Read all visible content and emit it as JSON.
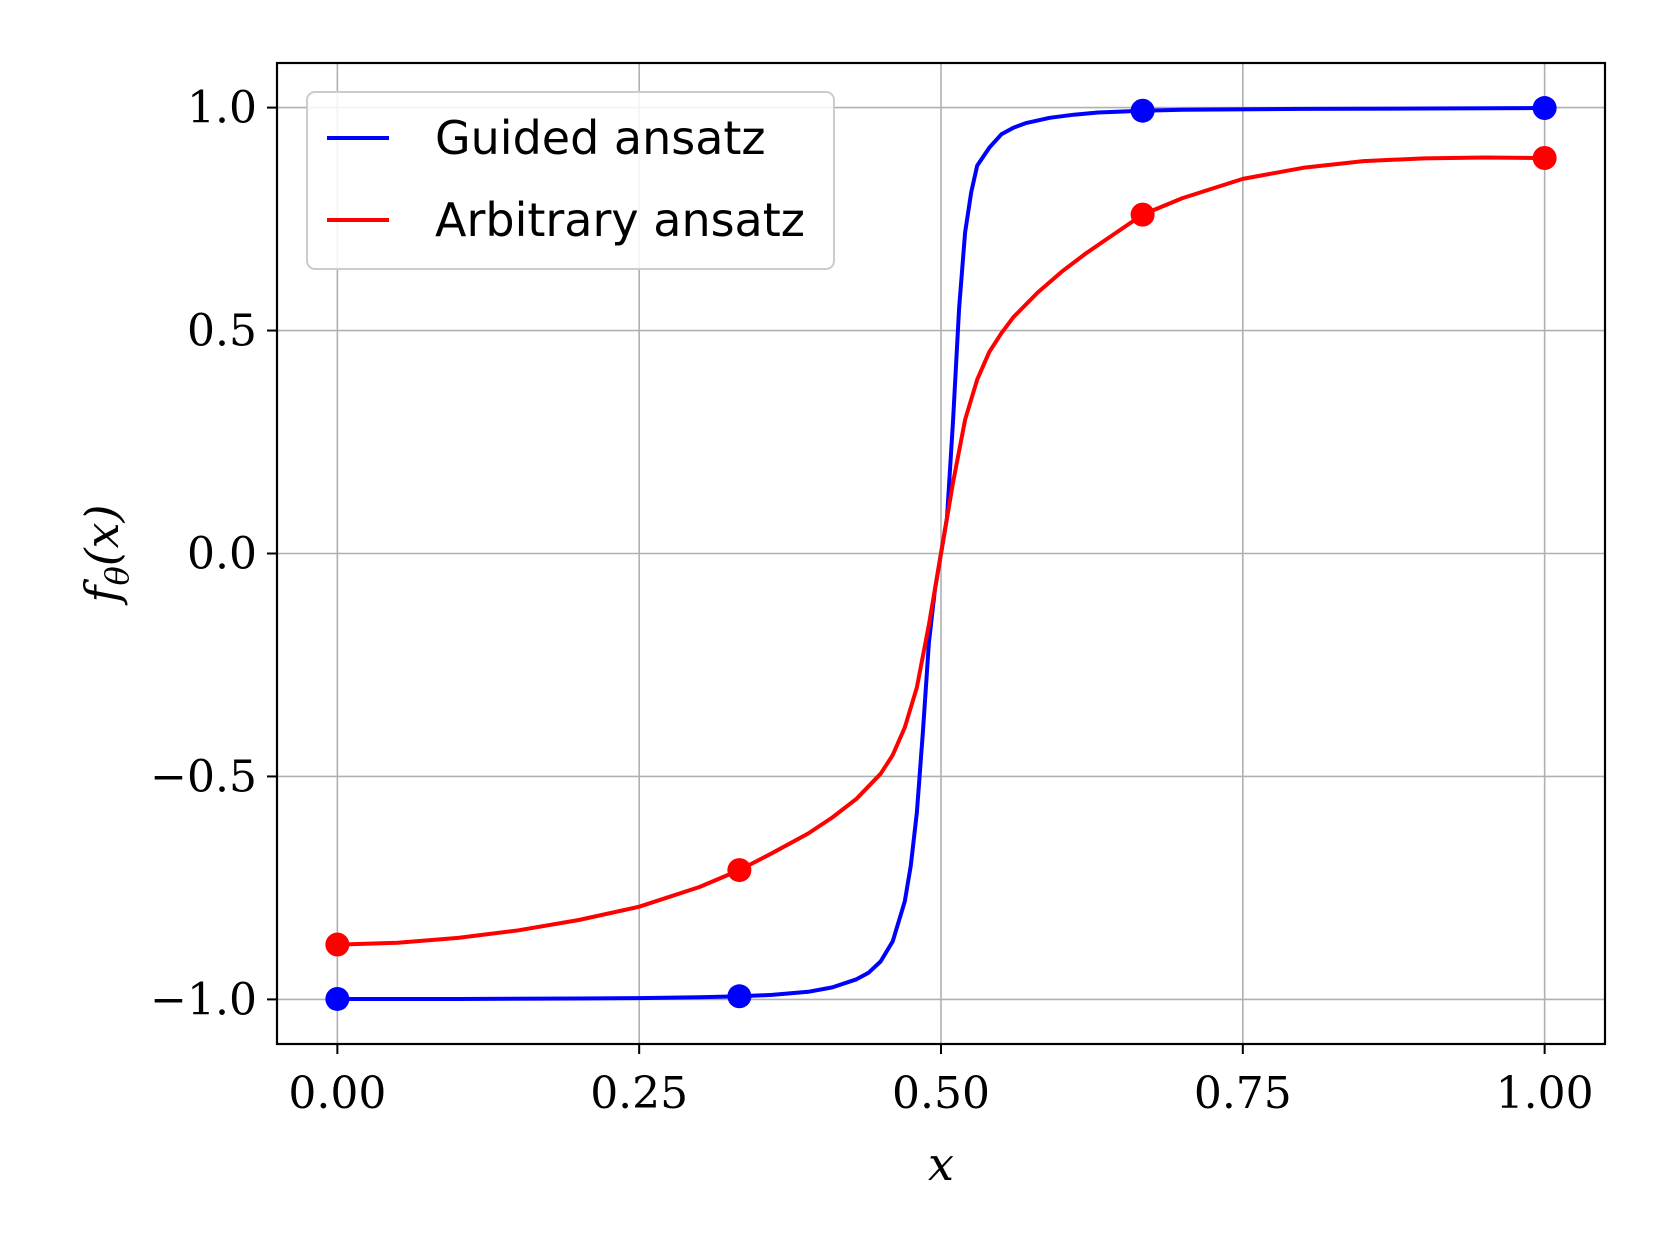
{
  "chart_data": {
    "type": "line",
    "xlabel": "x",
    "ylabel": "fθ(x)",
    "xlim": [
      -0.05,
      1.05
    ],
    "ylim": [
      -1.1,
      1.1
    ],
    "x_ticks": [
      0.0,
      0.25,
      0.5,
      0.75,
      1.0
    ],
    "x_tick_labels": [
      "0.00",
      "0.25",
      "0.50",
      "0.75",
      "1.00"
    ],
    "y_ticks": [
      -1.0,
      -0.5,
      0.0,
      0.5,
      1.0
    ],
    "y_tick_labels": [
      "−1.0",
      "−0.5",
      "0.0",
      "0.5",
      "1.0"
    ],
    "grid": true,
    "legend_position": "top-left",
    "series": [
      {
        "name": "Guided ansatz",
        "color": "#0000ff",
        "x": [
          0.0,
          0.1,
          0.2,
          0.25,
          0.3,
          0.333,
          0.36,
          0.39,
          0.41,
          0.43,
          0.44,
          0.45,
          0.46,
          0.47,
          0.475,
          0.48,
          0.485,
          0.49,
          0.495,
          0.5,
          0.505,
          0.51,
          0.515,
          0.52,
          0.525,
          0.53,
          0.54,
          0.55,
          0.56,
          0.57,
          0.59,
          0.61,
          0.63,
          0.667,
          0.7,
          0.8,
          0.9,
          1.0
        ],
        "y": [
          -0.999,
          -0.999,
          -0.998,
          -0.997,
          -0.995,
          -0.993,
          -0.99,
          -0.983,
          -0.973,
          -0.955,
          -0.94,
          -0.915,
          -0.87,
          -0.78,
          -0.7,
          -0.58,
          -0.4,
          -0.2,
          -0.08,
          0.0,
          0.08,
          0.3,
          0.55,
          0.72,
          0.81,
          0.87,
          0.91,
          0.94,
          0.955,
          0.965,
          0.977,
          0.984,
          0.989,
          0.993,
          0.995,
          0.997,
          0.998,
          0.999
        ],
        "markers_x": [
          0.0,
          0.333,
          0.667,
          1.0
        ],
        "markers_y": [
          -0.999,
          -0.993,
          0.993,
          0.999
        ]
      },
      {
        "name": "Arbitrary ansatz",
        "color": "#ff0000",
        "x": [
          0.0,
          0.05,
          0.1,
          0.15,
          0.2,
          0.25,
          0.3,
          0.333,
          0.36,
          0.39,
          0.41,
          0.43,
          0.45,
          0.46,
          0.47,
          0.48,
          0.49,
          0.5,
          0.51,
          0.52,
          0.53,
          0.54,
          0.55,
          0.56,
          0.58,
          0.6,
          0.62,
          0.64,
          0.667,
          0.7,
          0.75,
          0.8,
          0.85,
          0.9,
          0.95,
          1.0
        ],
        "y": [
          -0.877,
          -0.873,
          -0.862,
          -0.845,
          -0.822,
          -0.792,
          -0.748,
          -0.71,
          -0.672,
          -0.628,
          -0.592,
          -0.55,
          -0.494,
          -0.452,
          -0.39,
          -0.3,
          -0.16,
          0.0,
          0.16,
          0.3,
          0.39,
          0.452,
          0.494,
          0.53,
          0.585,
          0.632,
          0.673,
          0.71,
          0.76,
          0.797,
          0.84,
          0.865,
          0.88,
          0.886,
          0.888,
          0.887
        ],
        "markers_x": [
          0.0,
          0.333,
          0.667,
          1.0
        ],
        "markers_y": [
          -0.877,
          -0.71,
          0.76,
          0.887
        ]
      }
    ]
  }
}
